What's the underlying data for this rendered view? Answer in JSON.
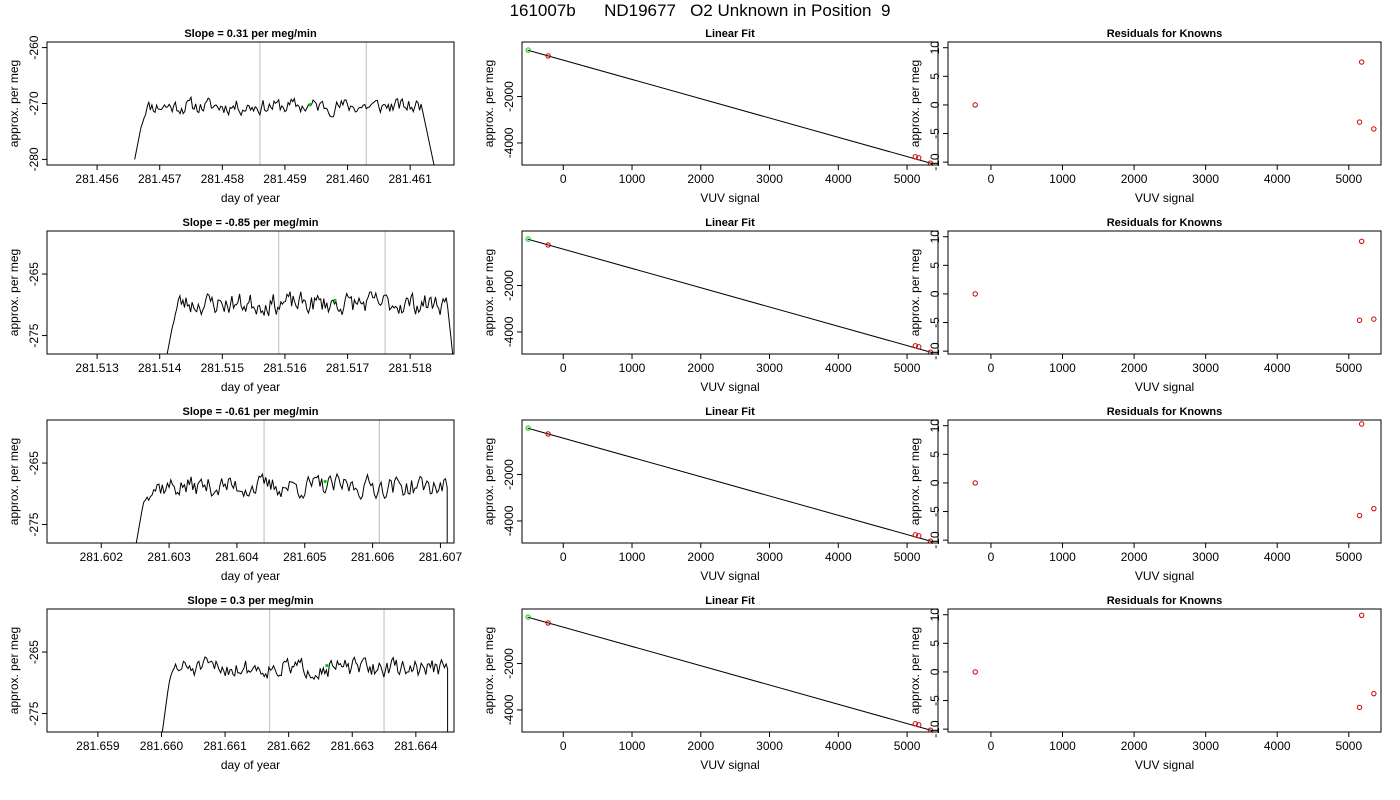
{
  "title": "161007b      ND19677   O2 Unknown in Position  9",
  "colors": {
    "known": "#cc0000",
    "unknown": "#00cc00",
    "line": "#000000",
    "marker": "#c8c8c8"
  },
  "chart_data": [
    {
      "type": "line",
      "title": "Slope =  0.31  per meg/min",
      "xlabel": "day of year",
      "ylabel": "approx. per meg",
      "xlim": [
        281.4552,
        281.4617
      ],
      "ylim": [
        -281,
        -259
      ],
      "xticks": [
        281.456,
        281.457,
        281.458,
        281.459,
        281.46,
        281.461
      ],
      "xticklabels": [
        "281.456",
        "281.457",
        "281.458",
        "281.459",
        "281.460",
        "281.461"
      ],
      "yticks": [
        -260,
        -270,
        -280
      ],
      "yticklabels": [
        "-260",
        "-270",
        "-280"
      ],
      "signal": {
        "start": 281.4567,
        "end": 281.4612,
        "level": -270.5,
        "amplitude": 1.6,
        "pre": [
          281.4566,
          -280
        ],
        "post": [
          281.4614,
          -282
        ],
        "seed": 11
      },
      "vlines": [
        281.4586,
        281.4603
      ],
      "unknown_point": [
        281.4594,
        -270.2
      ]
    },
    {
      "type": "scatter",
      "title": "Linear Fit",
      "xlabel": "VUV signal",
      "ylabel": "approx. per meg",
      "xlim": [
        -600,
        5450
      ],
      "ylim": [
        -4950,
        350
      ],
      "xticks": [
        0,
        1000,
        2000,
        3000,
        4000,
        5000
      ],
      "yticklabels": [
        "-2000",
        "-4000"
      ],
      "yticks": [
        -2000,
        -4000
      ],
      "xticklabels": [
        "0",
        "1000",
        "2000",
        "3000",
        "4000",
        "5000"
      ],
      "fit_line": [
        [
          -520,
          0
        ],
        [
          5340,
          -4870
        ]
      ],
      "knowns": [
        [
          -220,
          -250
        ],
        [
          5120,
          -4600
        ],
        [
          5170,
          -4640
        ],
        [
          5340,
          -4870
        ]
      ],
      "unknown": [
        -510,
        0
      ]
    },
    {
      "type": "scatter",
      "title": "Residuals for Knowns",
      "xlabel": "VUV signal",
      "ylabel": "approx. per meg",
      "xlim": [
        -600,
        5450
      ],
      "ylim": [
        -10.5,
        11
      ],
      "xticks": [
        0,
        1000,
        2000,
        3000,
        4000,
        5000
      ],
      "xticklabels": [
        "0",
        "1000",
        "2000",
        "3000",
        "4000",
        "5000"
      ],
      "yticks": [
        10,
        5,
        0,
        -5,
        -10
      ],
      "yticklabels": [
        "10",
        "5",
        "0",
        "-5",
        "-10"
      ],
      "points": [
        [
          -220,
          0
        ],
        [
          5180,
          7.5
        ],
        [
          5150,
          -3
        ],
        [
          5350,
          -4.2
        ]
      ]
    },
    {
      "type": "line",
      "title": "Slope =  -0.85  per meg/min",
      "xlabel": "day of year",
      "ylabel": "approx. per meg",
      "xlim": [
        281.5122,
        281.5187
      ],
      "ylim": [
        -278,
        -258
      ],
      "xticks": [
        281.513,
        281.514,
        281.515,
        281.516,
        281.517,
        281.518
      ],
      "xticklabels": [
        "281.513",
        "281.514",
        "281.515",
        "281.516",
        "281.517",
        "281.518"
      ],
      "yticks": [
        -265,
        -275
      ],
      "yticklabels": [
        "-265",
        "-275"
      ],
      "signal": {
        "start": 281.5142,
        "end": 281.5186,
        "level": -269.8,
        "amplitude": 2.0,
        "pre": [
          281.5141,
          -279
        ],
        "post": [
          281.5187,
          -280
        ],
        "seed": 23
      },
      "vlines": [
        281.5159,
        281.5176
      ],
      "unknown_point": [
        281.5168,
        -269.3
      ]
    },
    {
      "type": "scatter",
      "title": "Linear Fit",
      "xlabel": "VUV signal",
      "ylabel": "approx. per meg",
      "xlim": [
        -600,
        5450
      ],
      "ylim": [
        -4950,
        350
      ],
      "xticks": [
        0,
        1000,
        2000,
        3000,
        4000,
        5000
      ],
      "xticklabels": [
        "0",
        "1000",
        "2000",
        "3000",
        "4000",
        "5000"
      ],
      "yticks": [
        -2000,
        -4000
      ],
      "yticklabels": [
        "-2000",
        "-4000"
      ],
      "fit_line": [
        [
          -520,
          0
        ],
        [
          5340,
          -4870
        ]
      ],
      "knowns": [
        [
          -220,
          -250
        ],
        [
          5120,
          -4600
        ],
        [
          5170,
          -4640
        ],
        [
          5340,
          -4870
        ]
      ],
      "unknown": [
        -510,
        0
      ]
    },
    {
      "type": "scatter",
      "title": "Residuals for Knowns",
      "xlabel": "VUV signal",
      "ylabel": "approx. per meg",
      "xlim": [
        -600,
        5450
      ],
      "ylim": [
        -10.5,
        11
      ],
      "xticks": [
        0,
        1000,
        2000,
        3000,
        4000,
        5000
      ],
      "xticklabels": [
        "0",
        "1000",
        "2000",
        "3000",
        "4000",
        "5000"
      ],
      "yticks": [
        10,
        5,
        0,
        -5,
        -10
      ],
      "yticklabels": [
        "10",
        "5",
        "0",
        "-5",
        "-10"
      ],
      "points": [
        [
          -220,
          0
        ],
        [
          5180,
          9.2
        ],
        [
          5150,
          -4.6
        ],
        [
          5350,
          -4.4
        ]
      ]
    },
    {
      "type": "line",
      "title": "Slope =  -0.61  per meg/min",
      "xlabel": "day of year",
      "ylabel": "approx. per meg",
      "xlim": [
        281.6012,
        281.6072
      ],
      "ylim": [
        -278,
        -258
      ],
      "xticks": [
        281.602,
        281.603,
        281.604,
        281.605,
        281.606,
        281.607
      ],
      "xticklabels": [
        "281.602",
        "281.603",
        "281.604",
        "281.605",
        "281.606",
        "281.607"
      ],
      "yticks": [
        -265,
        -275
      ],
      "yticklabels": [
        "-265",
        "-275"
      ],
      "signal": {
        "start": 281.6026,
        "end": 281.6071,
        "level": -268.8,
        "amplitude": 2.0,
        "pre": [
          281.6025,
          -279
        ],
        "post": [
          281.6071,
          -279
        ],
        "seed": 37
      },
      "vlines": [
        281.6044,
        281.6061
      ],
      "unknown_point": [
        281.6053,
        -268
      ]
    },
    {
      "type": "scatter",
      "title": "Linear Fit",
      "xlabel": "VUV signal",
      "ylabel": "approx. per meg",
      "xlim": [
        -600,
        5450
      ],
      "ylim": [
        -4950,
        350
      ],
      "xticks": [
        0,
        1000,
        2000,
        3000,
        4000,
        5000
      ],
      "xticklabels": [
        "0",
        "1000",
        "2000",
        "3000",
        "4000",
        "5000"
      ],
      "yticks": [
        -2000,
        -4000
      ],
      "yticklabels": [
        "-2000",
        "-4000"
      ],
      "fit_line": [
        [
          -520,
          0
        ],
        [
          5340,
          -4870
        ]
      ],
      "knowns": [
        [
          -220,
          -250
        ],
        [
          5120,
          -4600
        ],
        [
          5170,
          -4640
        ],
        [
          5340,
          -4870
        ]
      ],
      "unknown": [
        -510,
        0
      ]
    },
    {
      "type": "scatter",
      "title": "Residuals for Knowns",
      "xlabel": "VUV signal",
      "ylabel": "approx. per meg",
      "xlim": [
        -600,
        5450
      ],
      "ylim": [
        -10.5,
        11
      ],
      "xticks": [
        0,
        1000,
        2000,
        3000,
        4000,
        5000
      ],
      "xticklabels": [
        "0",
        "1000",
        "2000",
        "3000",
        "4000",
        "5000"
      ],
      "yticks": [
        10,
        5,
        0,
        -5,
        -10
      ],
      "yticklabels": [
        "10",
        "5",
        "0",
        "-5",
        "-10"
      ],
      "points": [
        [
          -220,
          0
        ],
        [
          5180,
          10.3
        ],
        [
          5150,
          -5.7
        ],
        [
          5350,
          -4.5
        ]
      ]
    },
    {
      "type": "line",
      "title": "Slope =  0.3  per meg/min",
      "xlabel": "day of year",
      "ylabel": "approx. per meg",
      "xlim": [
        281.6582,
        281.6646
      ],
      "ylim": [
        -278,
        -258
      ],
      "xticks": [
        281.659,
        281.66,
        281.661,
        281.662,
        281.663,
        281.664
      ],
      "xticklabels": [
        "281.659",
        "281.660",
        "281.661",
        "281.662",
        "281.663",
        "281.664"
      ],
      "yticks": [
        -265,
        -275
      ],
      "yticklabels": [
        "-265",
        "-275"
      ],
      "signal": {
        "start": 281.6601,
        "end": 281.6645,
        "level": -267.6,
        "amplitude": 1.7,
        "pre": [
          281.66,
          -279
        ],
        "post": [
          281.6645,
          -280
        ],
        "seed": 51
      },
      "vlines": [
        281.6617,
        281.6635
      ],
      "unknown_point": [
        281.6626,
        -267.2
      ]
    },
    {
      "type": "scatter",
      "title": "Linear Fit",
      "xlabel": "VUV signal",
      "ylabel": "approx. per meg",
      "xlim": [
        -600,
        5450
      ],
      "ylim": [
        -4950,
        350
      ],
      "xticks": [
        0,
        1000,
        2000,
        3000,
        4000,
        5000
      ],
      "xticklabels": [
        "0",
        "1000",
        "2000",
        "3000",
        "4000",
        "5000"
      ],
      "yticks": [
        -2000,
        -4000
      ],
      "yticklabels": [
        "-2000",
        "-4000"
      ],
      "fit_line": [
        [
          -520,
          0
        ],
        [
          5340,
          -4870
        ]
      ],
      "knowns": [
        [
          -220,
          -250
        ],
        [
          5120,
          -4600
        ],
        [
          5170,
          -4640
        ],
        [
          5340,
          -4870
        ]
      ],
      "unknown": [
        -510,
        0
      ]
    },
    {
      "type": "scatter",
      "title": "Residuals for Knowns",
      "xlabel": "VUV signal",
      "ylabel": "approx. per meg",
      "xlim": [
        -600,
        5450
      ],
      "ylim": [
        -10.5,
        11
      ],
      "xticks": [
        0,
        1000,
        2000,
        3000,
        4000,
        5000
      ],
      "xticklabels": [
        "0",
        "1000",
        "2000",
        "3000",
        "4000",
        "5000"
      ],
      "yticks": [
        10,
        5,
        0,
        -5,
        -10
      ],
      "yticklabels": [
        "10",
        "5",
        "0",
        "-5",
        "-10"
      ],
      "points": [
        [
          -220,
          0
        ],
        [
          5180,
          9.9
        ],
        [
          5150,
          -6.2
        ],
        [
          5350,
          -3.8
        ]
      ]
    }
  ]
}
